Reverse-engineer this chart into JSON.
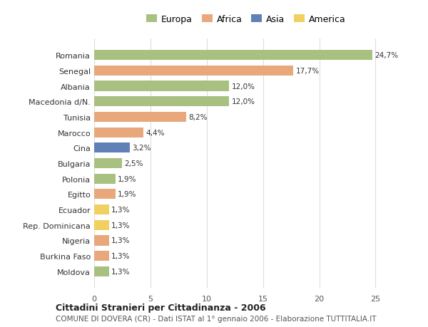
{
  "countries": [
    "Romania",
    "Senegal",
    "Albania",
    "Macedonia d/N.",
    "Tunisia",
    "Marocco",
    "Cina",
    "Bulgaria",
    "Polonia",
    "Egitto",
    "Ecuador",
    "Rep. Dominicana",
    "Nigeria",
    "Burkina Faso",
    "Moldova"
  ],
  "values": [
    24.7,
    17.7,
    12.0,
    12.0,
    8.2,
    4.4,
    3.2,
    2.5,
    1.9,
    1.9,
    1.3,
    1.3,
    1.3,
    1.3,
    1.3
  ],
  "labels": [
    "24,7%",
    "17,7%",
    "12,0%",
    "12,0%",
    "8,2%",
    "4,4%",
    "3,2%",
    "2,5%",
    "1,9%",
    "1,9%",
    "1,3%",
    "1,3%",
    "1,3%",
    "1,3%",
    "1,3%"
  ],
  "continents": [
    "Europa",
    "Africa",
    "Europa",
    "Europa",
    "Africa",
    "Africa",
    "Asia",
    "Europa",
    "Europa",
    "Africa",
    "America",
    "America",
    "Africa",
    "Africa",
    "Europa"
  ],
  "colors": {
    "Europa": "#a8c080",
    "Africa": "#e8a87c",
    "Asia": "#6080b8",
    "America": "#f0d060"
  },
  "legend_order": [
    "Europa",
    "Africa",
    "Asia",
    "America"
  ],
  "title_bold": "Cittadini Stranieri per Cittadinanza - 2006",
  "subtitle": "COMUNE DI DOVERA (CR) - Dati ISTAT al 1° gennaio 2006 - Elaborazione TUTTITALIA.IT",
  "xlim": [
    0,
    27
  ],
  "xticks": [
    0,
    5,
    10,
    15,
    20,
    25
  ],
  "background_color": "#ffffff",
  "grid_color": "#dddddd"
}
